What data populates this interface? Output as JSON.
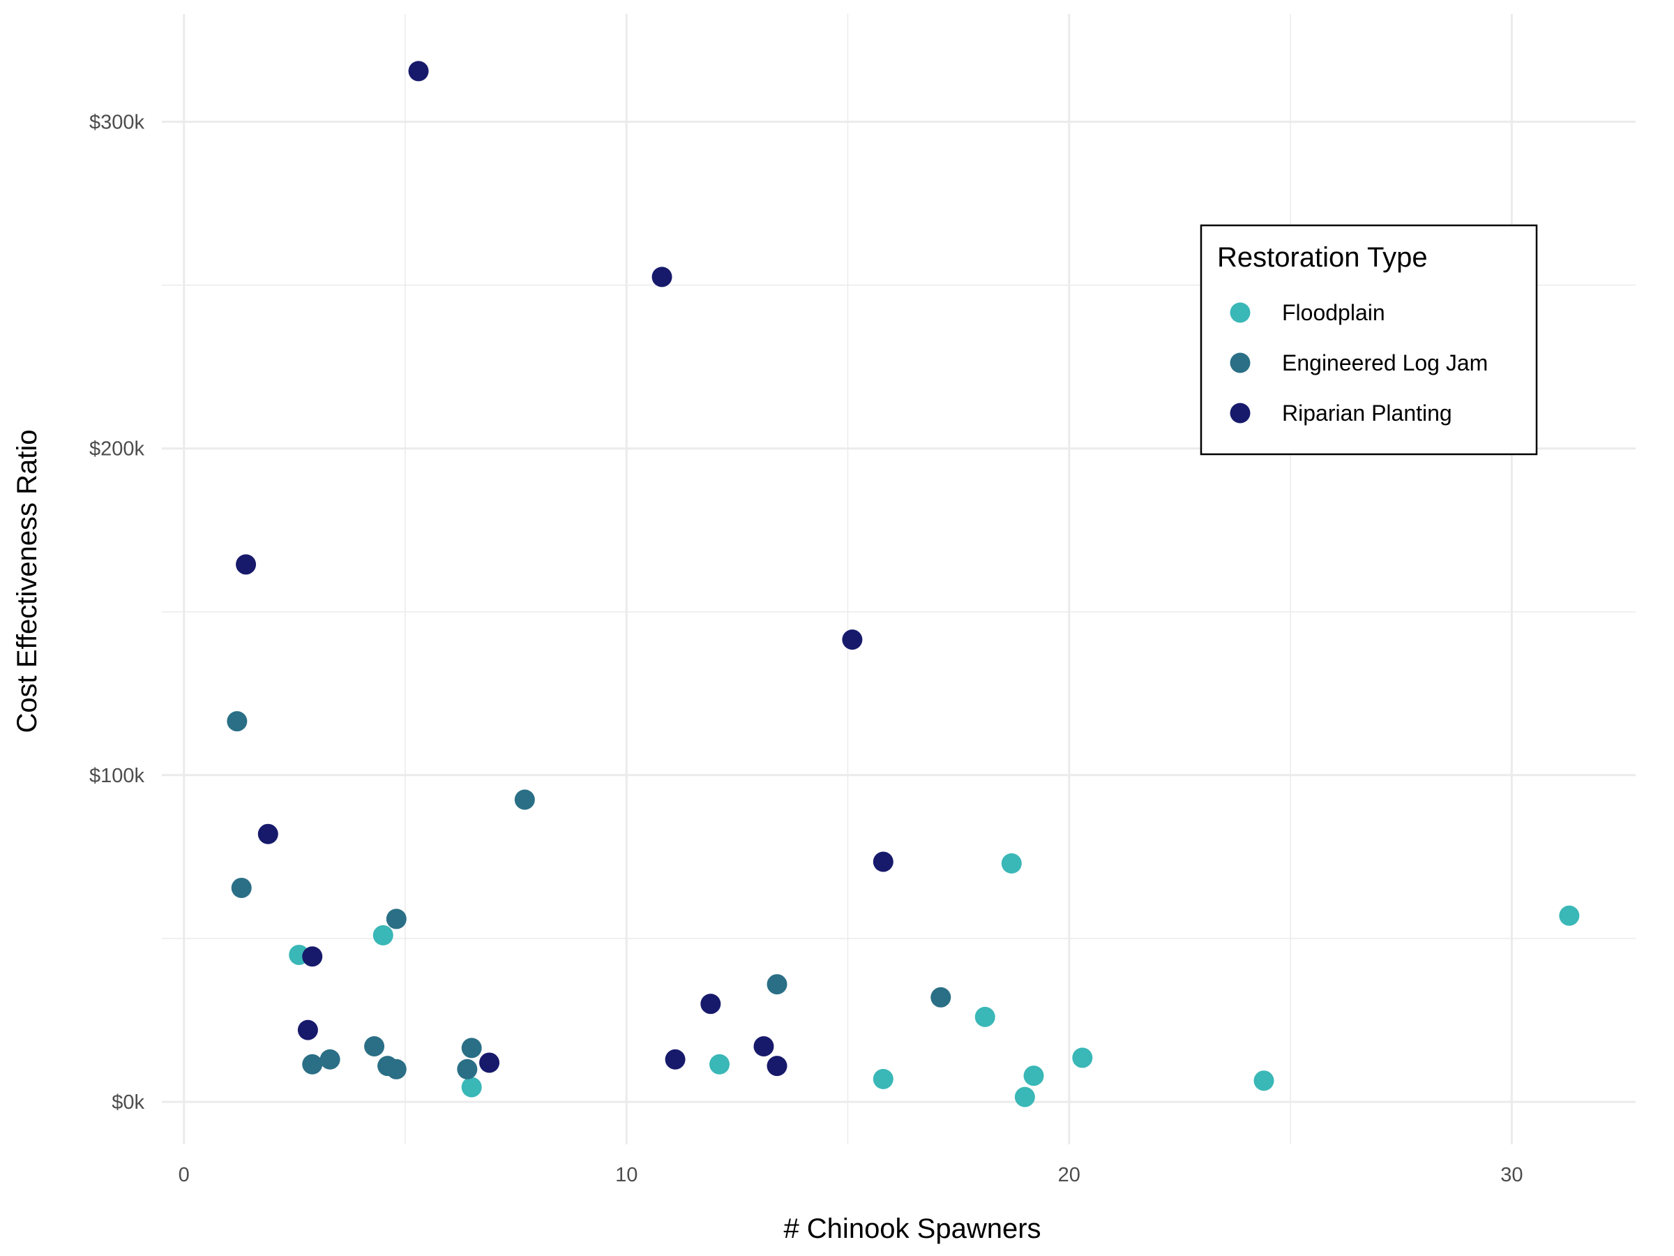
{
  "chart_data": {
    "type": "scatter",
    "title": "",
    "xlabel": "# Chinook Spawners",
    "ylabel": "Cost Effectiveness Ratio",
    "xlim": [
      -0.5,
      32.8
    ],
    "ylim": [
      -13000,
      333000
    ],
    "x_ticks": [
      0,
      10,
      20,
      30
    ],
    "x_tick_labels": [
      "0",
      "10",
      "20",
      "30"
    ],
    "y_ticks": [
      0,
      100000,
      200000,
      300000
    ],
    "y_tick_labels": [
      "$0k",
      "$100k",
      "$200k",
      "$300k"
    ],
    "grid": true,
    "legend_position": "top-right",
    "legend_title": "Restoration Type",
    "series": [
      {
        "name": "Floodplain",
        "color": "#3AB7B7",
        "points": [
          {
            "x": 2.6,
            "y": 45000
          },
          {
            "x": 4.5,
            "y": 51000
          },
          {
            "x": 6.5,
            "y": 4500
          },
          {
            "x": 12.1,
            "y": 11500
          },
          {
            "x": 15.8,
            "y": 7000
          },
          {
            "x": 18.1,
            "y": 26000
          },
          {
            "x": 18.7,
            "y": 73000
          },
          {
            "x": 19.0,
            "y": 1500
          },
          {
            "x": 19.2,
            "y": 8000
          },
          {
            "x": 20.3,
            "y": 13500
          },
          {
            "x": 24.4,
            "y": 6500
          },
          {
            "x": 31.3,
            "y": 57000
          }
        ]
      },
      {
        "name": "Engineered Log Jam",
        "color": "#2A6F86",
        "points": [
          {
            "x": 1.2,
            "y": 116500
          },
          {
            "x": 1.3,
            "y": 65500
          },
          {
            "x": 2.9,
            "y": 11500
          },
          {
            "x": 3.3,
            "y": 13000
          },
          {
            "x": 4.3,
            "y": 17000
          },
          {
            "x": 4.6,
            "y": 11000
          },
          {
            "x": 4.8,
            "y": 56000
          },
          {
            "x": 4.8,
            "y": 10000
          },
          {
            "x": 6.4,
            "y": 10000
          },
          {
            "x": 6.5,
            "y": 16500
          },
          {
            "x": 7.7,
            "y": 92500
          },
          {
            "x": 13.4,
            "y": 36000
          },
          {
            "x": 17.1,
            "y": 32000
          }
        ]
      },
      {
        "name": "Riparian Planting",
        "color": "#171A6B",
        "points": [
          {
            "x": 1.4,
            "y": 164500
          },
          {
            "x": 1.9,
            "y": 82000
          },
          {
            "x": 2.8,
            "y": 22000
          },
          {
            "x": 2.9,
            "y": 44500
          },
          {
            "x": 5.3,
            "y": 315500
          },
          {
            "x": 6.9,
            "y": 12000
          },
          {
            "x": 10.8,
            "y": 252500
          },
          {
            "x": 11.1,
            "y": 13000
          },
          {
            "x": 11.9,
            "y": 30000
          },
          {
            "x": 13.1,
            "y": 17000
          },
          {
            "x": 13.4,
            "y": 11000
          },
          {
            "x": 15.1,
            "y": 141500
          },
          {
            "x": 15.8,
            "y": 73500
          }
        ]
      }
    ]
  }
}
